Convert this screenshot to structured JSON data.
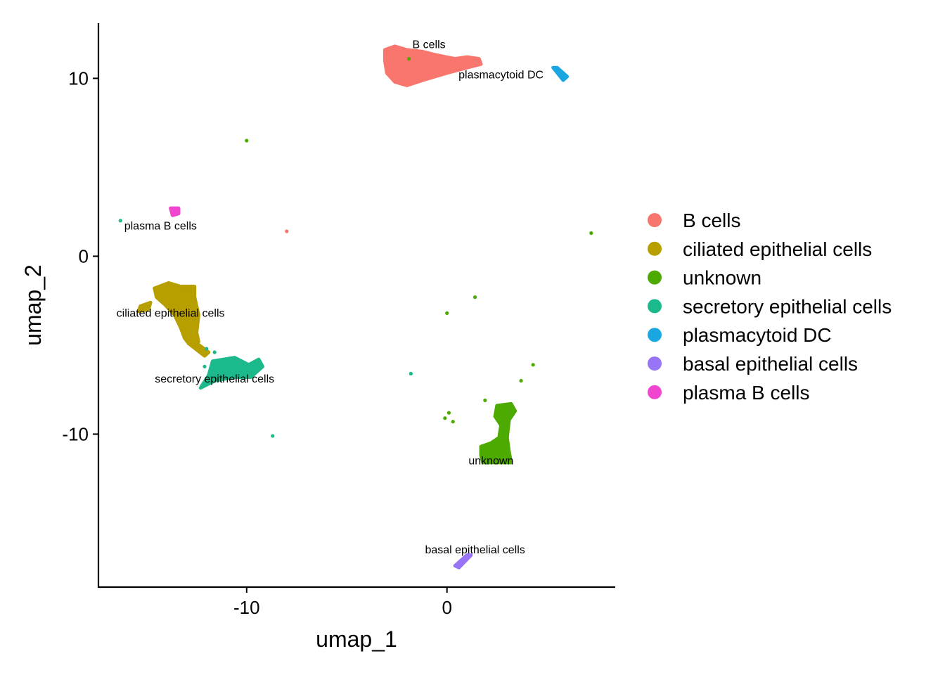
{
  "chart_data": {
    "type": "scatter",
    "title": "",
    "xlabel": "umap_1",
    "ylabel": "umap_2",
    "xlim": [
      -17.4,
      8.4
    ],
    "ylim": [
      -18.6,
      13.1
    ],
    "xticks": [
      -10,
      0
    ],
    "xtick_labels": [
      "-10",
      "0"
    ],
    "yticks": [
      10,
      0,
      -10
    ],
    "ytick_labels": [
      "10",
      "0",
      "-10"
    ],
    "grid": false,
    "legend": {
      "placement": "right",
      "entries": [
        {
          "label": "B cells",
          "color": "#F8766D"
        },
        {
          "label": "ciliated epithelial cells",
          "color": "#B79F00"
        },
        {
          "label": "unknown",
          "color": "#4DAA00"
        },
        {
          "label": "secretory epithelial cells",
          "color": "#1BB98B"
        },
        {
          "label": "plasmacytoid DC",
          "color": "#1AA6E0"
        },
        {
          "label": "basal epithelial cells",
          "color": "#9874F7"
        },
        {
          "label": "plasma B cells",
          "color": "#F046CF"
        }
      ]
    },
    "series": [
      {
        "name": "B cells",
        "color": "#F8766D",
        "label": "B cells",
        "label_pos": [
          -0.9,
          11.7
        ],
        "cluster_outline": [
          [
            -3.1,
            11.6
          ],
          [
            -2.6,
            11.8
          ],
          [
            -2.0,
            11.6
          ],
          [
            -1.2,
            11.5
          ],
          [
            -0.5,
            11.3
          ],
          [
            0.4,
            11.1
          ],
          [
            1.0,
            11.2
          ],
          [
            1.6,
            11.1
          ],
          [
            1.7,
            10.8
          ],
          [
            1.0,
            10.6
          ],
          [
            0.0,
            10.3
          ],
          [
            -1.2,
            9.9
          ],
          [
            -2.0,
            9.6
          ],
          [
            -2.6,
            9.8
          ],
          [
            -3.0,
            10.3
          ],
          [
            -3.1,
            11.0
          ]
        ],
        "points": [
          [
            -8.0,
            1.4
          ]
        ]
      },
      {
        "name": "ciliated epithelial cells",
        "color": "#B79F00",
        "label": "ciliated epithelial cells",
        "label_pos": [
          -13.8,
          -3.4
        ],
        "cluster_outline": [
          [
            -14.6,
            -1.8
          ],
          [
            -13.9,
            -1.5
          ],
          [
            -13.3,
            -1.7
          ],
          [
            -12.6,
            -1.7
          ],
          [
            -12.6,
            -2.3
          ],
          [
            -12.4,
            -3.3
          ],
          [
            -12.5,
            -4.3
          ],
          [
            -12.4,
            -4.8
          ],
          [
            -12.9,
            -4.9
          ],
          [
            -13.1,
            -4.6
          ],
          [
            -13.3,
            -4.0
          ],
          [
            -13.6,
            -3.3
          ],
          [
            -14.1,
            -2.7
          ],
          [
            -14.5,
            -2.3
          ]
        ],
        "extra_outlines": [
          [
            [
              -15.3,
              -2.8
            ],
            [
              -14.8,
              -2.6
            ],
            [
              -14.9,
              -3.0
            ],
            [
              -15.4,
              -3.1
            ]
          ],
          [
            [
              -12.9,
              -4.9
            ],
            [
              -12.6,
              -4.8
            ],
            [
              -11.9,
              -5.4
            ],
            [
              -12.1,
              -5.6
            ]
          ]
        ],
        "points": []
      },
      {
        "name": "unknown",
        "color": "#4DAA00",
        "label": "unknown",
        "label_pos": [
          2.2,
          -11.7
        ],
        "cluster_outline": [
          [
            2.5,
            -8.4
          ],
          [
            3.2,
            -8.3
          ],
          [
            3.4,
            -8.7
          ],
          [
            3.1,
            -9.2
          ],
          [
            3.0,
            -10.2
          ],
          [
            3.1,
            -11.0
          ],
          [
            3.2,
            -11.6
          ],
          [
            1.8,
            -11.6
          ],
          [
            1.7,
            -11.2
          ],
          [
            1.7,
            -10.7
          ],
          [
            2.2,
            -10.5
          ],
          [
            2.6,
            -10.2
          ],
          [
            2.7,
            -9.5
          ],
          [
            2.4,
            -9.0
          ]
        ],
        "points": [
          [
            -10.0,
            6.5
          ],
          [
            7.2,
            1.3
          ],
          [
            1.4,
            -2.3
          ],
          [
            0.0,
            -3.2
          ],
          [
            4.3,
            -6.1
          ],
          [
            3.7,
            -7.0
          ],
          [
            1.9,
            -8.1
          ],
          [
            0.1,
            -8.8
          ],
          [
            -0.1,
            -9.1
          ],
          [
            0.3,
            -9.3
          ],
          [
            3.1,
            -8.7
          ],
          [
            -1.9,
            11.1
          ]
        ]
      },
      {
        "name": "secretory epithelial cells",
        "color": "#1BB98B",
        "label": "secretory epithelial cells",
        "label_pos": [
          -11.6,
          -7.1
        ],
        "cluster_outline": [
          [
            -11.7,
            -5.9
          ],
          [
            -10.6,
            -5.7
          ],
          [
            -9.9,
            -6.1
          ],
          [
            -9.4,
            -5.8
          ],
          [
            -9.2,
            -6.2
          ],
          [
            -9.8,
            -6.8
          ],
          [
            -10.7,
            -6.8
          ],
          [
            -11.6,
            -7.0
          ],
          [
            -12.3,
            -7.4
          ],
          [
            -11.9,
            -6.7
          ]
        ],
        "points": [
          [
            -16.3,
            2.0
          ],
          [
            -12.0,
            -5.2
          ],
          [
            -11.6,
            -5.4
          ],
          [
            -1.8,
            -6.6
          ],
          [
            -8.7,
            -10.1
          ],
          [
            -12.1,
            -6.2
          ]
        ]
      },
      {
        "name": "plasmacytoid DC",
        "color": "#1AA6E0",
        "label": "plasmacytoid DC",
        "label_pos": [
          2.7,
          10.0
        ],
        "cluster_outline": [
          [
            5.3,
            10.6
          ],
          [
            5.5,
            10.6
          ],
          [
            6.0,
            10.1
          ],
          [
            5.8,
            9.9
          ]
        ],
        "points": []
      },
      {
        "name": "basal epithelial cells",
        "color": "#9874F7",
        "label": "basal epithelial cells",
        "label_pos": [
          1.4,
          -16.7
        ],
        "cluster_outline": [
          [
            1.0,
            -16.8
          ],
          [
            1.2,
            -16.8
          ],
          [
            0.6,
            -17.5
          ],
          [
            0.4,
            -17.4
          ]
        ],
        "points": []
      },
      {
        "name": "plasma B cells",
        "color": "#F046CF",
        "label": "plasma B cells",
        "label_pos": [
          -14.3,
          1.5
        ],
        "cluster_outline": [
          [
            -13.8,
            2.7
          ],
          [
            -13.4,
            2.7
          ],
          [
            -13.4,
            2.4
          ],
          [
            -13.7,
            2.3
          ]
        ],
        "points": []
      }
    ]
  }
}
